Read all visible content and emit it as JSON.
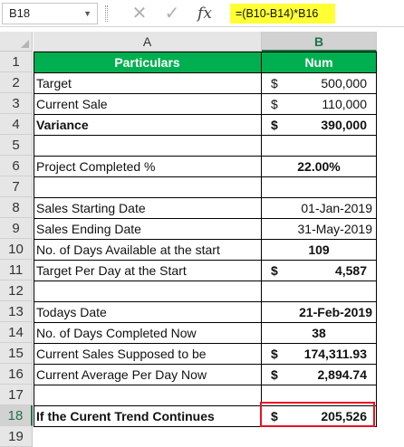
{
  "formula_bar": {
    "name_box": "B18",
    "formula": "=(B10-B14)*B16",
    "cancel_icon": "x-icon",
    "enter_icon": "check-icon",
    "function_icon": "fx-icon"
  },
  "columns": [
    "A",
    "B"
  ],
  "rows": [
    {
      "n": "1",
      "a": "Particulars",
      "cur": "",
      "b": "Num",
      "type": "header"
    },
    {
      "n": "2",
      "a": "Target",
      "cur": "$",
      "b": "500,000",
      "type": "money"
    },
    {
      "n": "3",
      "a": "Current Sale",
      "cur": "$",
      "b": "110,000",
      "type": "money"
    },
    {
      "n": "4",
      "a": "Variance",
      "cur": "$",
      "b": "390,000",
      "type": "money-bold"
    },
    {
      "n": "5",
      "a": "",
      "cur": "",
      "b": "",
      "type": "blank"
    },
    {
      "n": "6",
      "a": "Project Completed %",
      "cur": "",
      "b": "22.00%",
      "type": "center-bold"
    },
    {
      "n": "7",
      "a": "",
      "cur": "",
      "b": "",
      "type": "blank"
    },
    {
      "n": "8",
      "a": "Sales Starting Date",
      "cur": "",
      "b": "01-Jan-2019",
      "type": "right"
    },
    {
      "n": "9",
      "a": "Sales Ending Date",
      "cur": "",
      "b": "31-May-2019",
      "type": "right"
    },
    {
      "n": "10",
      "a": "No. of Days Available at the start",
      "cur": "",
      "b": "109",
      "type": "center-bold"
    },
    {
      "n": "11",
      "a": "Target Per Day at the Start",
      "cur": "$",
      "b": "4,587",
      "type": "money-bold"
    },
    {
      "n": "12",
      "a": "",
      "cur": "",
      "b": "",
      "type": "blank"
    },
    {
      "n": "13",
      "a": "Todays Date",
      "cur": "",
      "b": "21-Feb-2019",
      "type": "right-bold"
    },
    {
      "n": "14",
      "a": "No. of Days Completed Now",
      "cur": "",
      "b": "38",
      "type": "center-bold"
    },
    {
      "n": "15",
      "a": "Current Sales Supposed to be",
      "cur": "$",
      "b": "174,311.93",
      "type": "money-bold"
    },
    {
      "n": "16",
      "a": "Current Average Per Day Now",
      "cur": "$",
      "b": "2,894.74",
      "type": "money-bold"
    },
    {
      "n": "17",
      "a": "",
      "cur": "",
      "b": "",
      "type": "blank"
    },
    {
      "n": "18",
      "a": "If the Curent Trend Continues",
      "cur": "$",
      "b": "205,526",
      "type": "money-bold"
    },
    {
      "n": "19",
      "a": "",
      "cur": "",
      "b": "",
      "type": "empty"
    }
  ],
  "colors": {
    "header_fill": "#00b050",
    "formula_highlight": "#ffff33",
    "selected_border": "#e81123"
  },
  "selected_cell": "B18"
}
